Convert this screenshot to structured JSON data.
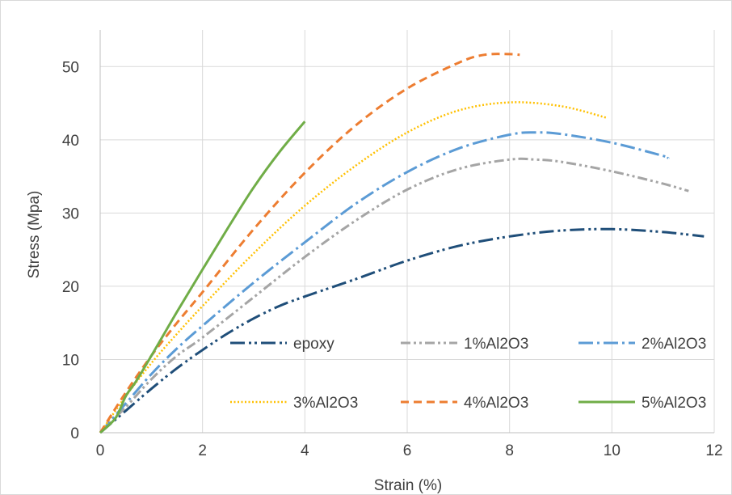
{
  "chart_data": {
    "type": "line",
    "title": "",
    "xlabel": "Strain (%)",
    "ylabel": "Stress (Mpa)",
    "xlim": [
      0,
      12
    ],
    "ylim": [
      0,
      55
    ],
    "x_ticks": [
      "0",
      "2",
      "4",
      "6",
      "8",
      "10",
      "12"
    ],
    "y_ticks": [
      "0",
      "10",
      "20",
      "30",
      "40",
      "50"
    ],
    "x_tick_values": [
      0,
      2,
      4,
      6,
      8,
      10,
      12
    ],
    "y_tick_values": [
      0,
      10,
      20,
      30,
      40,
      50
    ],
    "grid": "vertical and horizontal major gridlines",
    "legend_position": "lower-right inside plot",
    "series": [
      {
        "name": "epoxy",
        "color": "#1F4E79",
        "style": "long-dash-dot-dot",
        "points": [
          [
            0,
            0
          ],
          [
            0.5,
            3
          ],
          [
            1,
            6
          ],
          [
            1.5,
            8.8
          ],
          [
            2,
            11.3
          ],
          [
            2.5,
            13.6
          ],
          [
            3,
            15.6
          ],
          [
            3.5,
            17.3
          ],
          [
            4,
            18.6
          ],
          [
            5,
            21
          ],
          [
            6,
            23.5
          ],
          [
            7,
            25.5
          ],
          [
            8,
            26.8
          ],
          [
            9,
            27.6
          ],
          [
            10,
            27.8
          ],
          [
            11,
            27.4
          ],
          [
            11.8,
            26.8
          ]
        ]
      },
      {
        "name": "1%Al2O3",
        "color": "#A5A5A5",
        "style": "dash-dot-dot",
        "points": [
          [
            0,
            0
          ],
          [
            0.5,
            3.5
          ],
          [
            1,
            7.3
          ],
          [
            1.5,
            10.5
          ],
          [
            2,
            13
          ],
          [
            3,
            18.5
          ],
          [
            4,
            24
          ],
          [
            5,
            29
          ],
          [
            6,
            33.2
          ],
          [
            7,
            36
          ],
          [
            8,
            37.3
          ],
          [
            8.5,
            37.3
          ],
          [
            9,
            37
          ],
          [
            10,
            35.7
          ],
          [
            11,
            34
          ],
          [
            11.5,
            33
          ]
        ]
      },
      {
        "name": "2%Al2O3",
        "color": "#5B9BD5",
        "style": "long-dash-dot",
        "points": [
          [
            0,
            0
          ],
          [
            0.5,
            4
          ],
          [
            1,
            8
          ],
          [
            1.5,
            11.5
          ],
          [
            2,
            14.6
          ],
          [
            3,
            20.5
          ],
          [
            4,
            26
          ],
          [
            5,
            31.3
          ],
          [
            6,
            35.6
          ],
          [
            7,
            38.8
          ],
          [
            8,
            40.7
          ],
          [
            8.5,
            41
          ],
          [
            9,
            40.8
          ],
          [
            10,
            39.6
          ],
          [
            11,
            37.8
          ],
          [
            11.1,
            37.5
          ]
        ]
      },
      {
        "name": "3%Al2O3",
        "color": "#FFC000",
        "style": "dotted",
        "points": [
          [
            0,
            0
          ],
          [
            0.5,
            5
          ],
          [
            1,
            9.5
          ],
          [
            1.5,
            13.5
          ],
          [
            2,
            17.3
          ],
          [
            3,
            24.5
          ],
          [
            4,
            31
          ],
          [
            5,
            36.5
          ],
          [
            6,
            41
          ],
          [
            7,
            44
          ],
          [
            8,
            45.1
          ],
          [
            9,
            44.6
          ],
          [
            9.9,
            43
          ]
        ]
      },
      {
        "name": "4%Al2O3",
        "color": "#ED7D31",
        "style": "dashed",
        "points": [
          [
            0,
            0
          ],
          [
            0.5,
            5.5
          ],
          [
            1,
            10.5
          ],
          [
            1.5,
            15
          ],
          [
            2,
            19.2
          ],
          [
            3,
            27.8
          ],
          [
            4,
            35.5
          ],
          [
            5,
            42
          ],
          [
            6,
            47
          ],
          [
            7,
            50.5
          ],
          [
            7.5,
            51.6
          ],
          [
            8,
            51.7
          ],
          [
            8.2,
            51.6
          ]
        ]
      },
      {
        "name": "5%Al2O3",
        "color": "#70AD47",
        "style": "solid",
        "points": [
          [
            0,
            0
          ],
          [
            0.3,
            2
          ],
          [
            0.5,
            5
          ],
          [
            0.7,
            7
          ],
          [
            1,
            10.5
          ],
          [
            1.5,
            16.5
          ],
          [
            2,
            22.3
          ],
          [
            2.5,
            28
          ],
          [
            3,
            33.5
          ],
          [
            3.5,
            38.3
          ],
          [
            4,
            42.5
          ]
        ]
      }
    ]
  }
}
